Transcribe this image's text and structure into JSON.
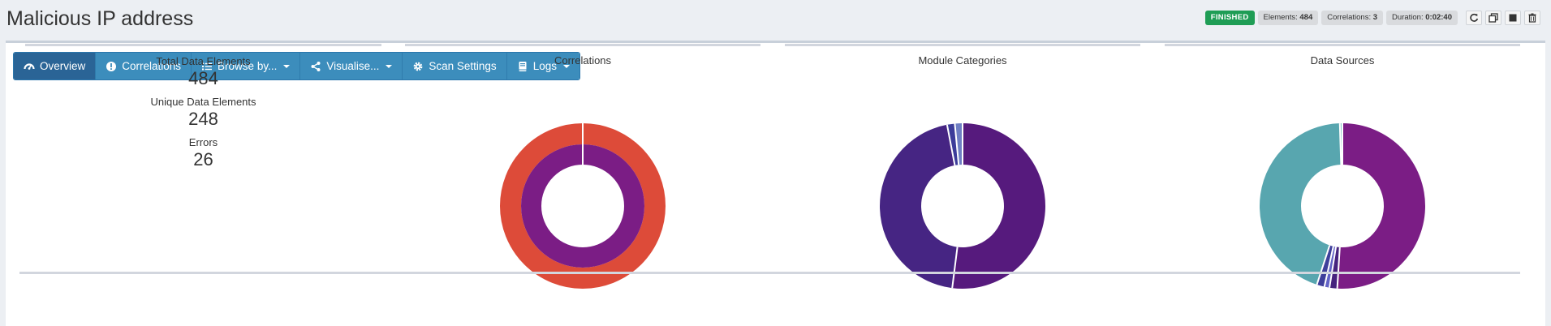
{
  "header": {
    "title": "Malicious IP address",
    "status": "FINISHED",
    "elements_label": "Elements:",
    "elements_value": "484",
    "correlations_label": "Correlations:",
    "correlations_value": "3",
    "duration_label": "Duration:",
    "duration_value": "0:02:40",
    "icons": [
      "refresh-icon",
      "clone-icon",
      "stop-icon",
      "trash-icon"
    ]
  },
  "nav": {
    "items": [
      {
        "label": "Overview",
        "icon": "dashboard-icon",
        "active": true
      },
      {
        "label": "Correlations",
        "icon": "exclamation-circle-icon"
      },
      {
        "label": "Browse by...",
        "icon": "list-icon",
        "dropdown": true
      },
      {
        "label": "Visualise...",
        "icon": "share-icon",
        "dropdown": true
      },
      {
        "label": "Scan Settings",
        "icon": "gear-icon"
      },
      {
        "label": "Logs",
        "icon": "book-icon",
        "dropdown": true
      }
    ]
  },
  "summary": {
    "total_label": "Total Data Elements",
    "total_value": "484",
    "unique_label": "Unique Data Elements",
    "unique_value": "248",
    "errors_label": "Errors",
    "errors_value": "26"
  },
  "chart_data": [
    {
      "type": "pie",
      "title": "Correlations",
      "rings": [
        {
          "name": "outer",
          "values": [
            100
          ],
          "colors": [
            "#dd4b39"
          ]
        },
        {
          "name": "inner",
          "values": [
            100
          ],
          "colors": [
            "#7b1d85"
          ]
        }
      ]
    },
    {
      "type": "pie",
      "title": "Module Categories",
      "values": [
        52,
        45,
        1.5,
        1.5
      ],
      "colors": [
        "#561a7d",
        "#462583",
        "#3c3c9a",
        "#6f7fc4"
      ]
    },
    {
      "type": "pie",
      "title": "Data Sources",
      "values": [
        51,
        1.5,
        1,
        1.5,
        44.5,
        0.5
      ],
      "colors": [
        "#7b1d85",
        "#46237e",
        "#6262c6",
        "#3f3f9b",
        "#58a6af",
        "#8fc7cd"
      ]
    }
  ]
}
